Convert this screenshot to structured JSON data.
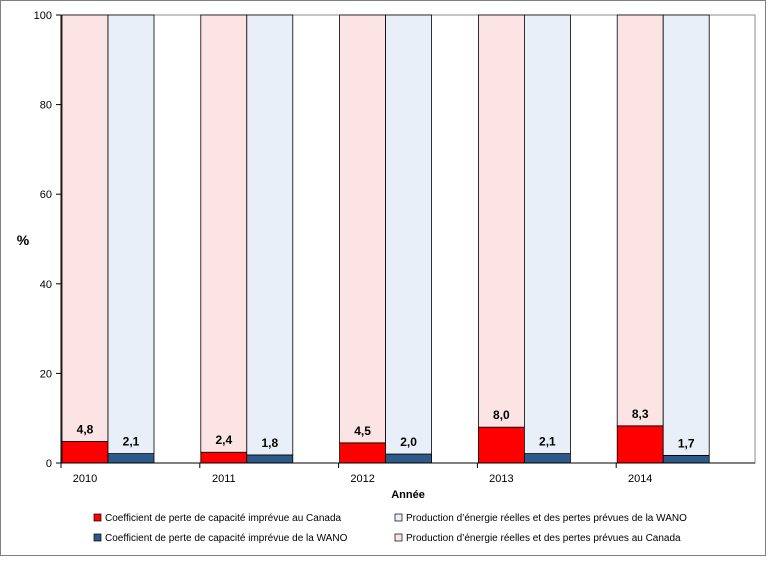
{
  "chart_data": {
    "type": "bar",
    "stacked": true,
    "xlabel": "Année",
    "ylabel": "%",
    "ylim": [
      0,
      100
    ],
    "yticks": [
      0,
      20,
      40,
      60,
      80,
      100
    ],
    "grid": false,
    "legend_position": "bottom",
    "categories": [
      "2010",
      "2011",
      "2012",
      "2013",
      "2014"
    ],
    "groups": [
      {
        "name": "Canada",
        "segments": [
          {
            "name": "Coefficient de perte de capacité imprévue au Canada",
            "color": "#ff0000",
            "values": [
              4.8,
              2.4,
              4.5,
              8.0,
              8.3
            ]
          },
          {
            "name": "Production d’énergie réelles et des pertes prévues au Canada",
            "color": "#fce4e4",
            "values": [
              95.2,
              97.6,
              95.5,
              92.0,
              91.7
            ]
          }
        ]
      },
      {
        "name": "WANO",
        "segments": [
          {
            "name": "Coefficient de perte de capacité imprévue de la WANO",
            "color": "#2e5a8a",
            "values": [
              2.1,
              1.8,
              2.0,
              2.1,
              1.7
            ]
          },
          {
            "name": "Production d’énergie réelles et des pertes prévues de la WANO",
            "color": "#e8eff8",
            "values": [
              97.9,
              98.2,
              98.0,
              97.9,
              98.3
            ]
          }
        ]
      }
    ],
    "data_labels": {
      "canada": [
        "4,8",
        "2,4",
        "4,5",
        "8,0",
        "8,3"
      ],
      "wano": [
        "2,1",
        "1,8",
        "2,0",
        "2,1",
        "1,7"
      ]
    },
    "legend": [
      {
        "label": "Coefficient de perte de capacité imprévue au Canada",
        "color": "#ff0000"
      },
      {
        "label": "Production d’énergie réelles et des pertes prévues de la WANO",
        "color": "#e8eff8"
      },
      {
        "label": "Coefficient de perte de capacité imprévue de la WANO",
        "color": "#2e5a8a"
      },
      {
        "label": "Production d’énergie réelles et des pertes prévues au Canada",
        "color": "#fce4e4"
      }
    ]
  }
}
